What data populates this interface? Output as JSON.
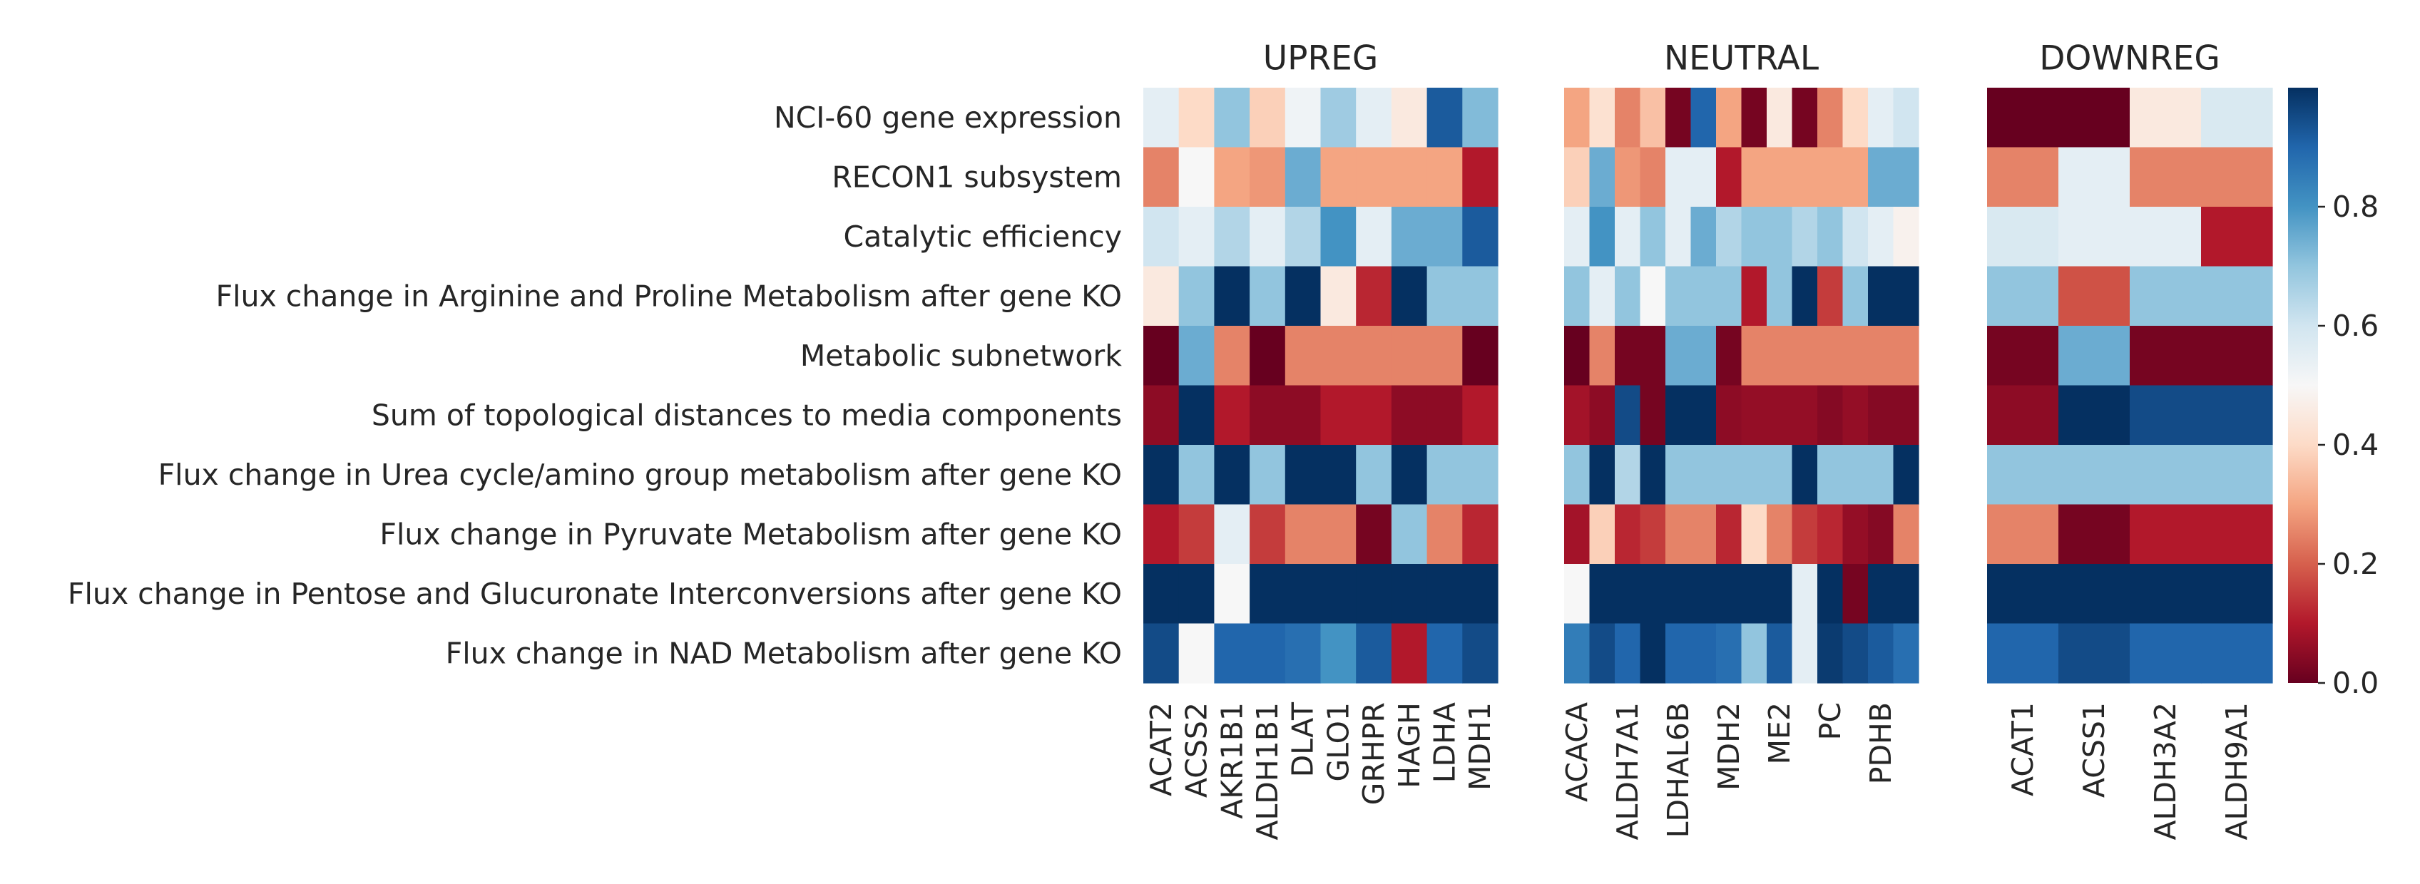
{
  "chart_data": {
    "type": "heatmap",
    "rows": [
      "NCI-60 gene expression",
      "RECON1 subsystem",
      "Catalytic efficiency",
      "Flux change in Arginine and Proline Metabolism after gene KO",
      "Metabolic subnetwork",
      "Sum of topological distances to media components",
      "Flux change in Urea cycle/amino group metabolism after gene KO",
      "Flux change in Pyruvate Metabolism after gene KO",
      "Flux change in Pentose and Glucuronate Interconversions after gene KO",
      "Flux change in NAD Metabolism after gene KO"
    ],
    "panels": [
      {
        "title": "UPREG",
        "columns": [
          "ACAT2",
          "ACSS2",
          "AKR1B1",
          "ALDH1B1",
          "DLAT",
          "GLO1",
          "GRHPR",
          "HAGH",
          "LDHA",
          "MDH1"
        ],
        "values": [
          [
            0.55,
            0.4,
            0.7,
            0.38,
            0.52,
            0.68,
            0.55,
            0.45,
            0.92,
            0.72
          ],
          [
            0.25,
            0.5,
            0.3,
            0.28,
            0.75,
            0.3,
            0.3,
            0.3,
            0.3,
            0.1
          ],
          [
            0.6,
            0.55,
            0.65,
            0.55,
            0.65,
            0.8,
            0.55,
            0.75,
            0.75,
            0.92
          ],
          [
            0.45,
            0.7,
            1.0,
            0.7,
            1.0,
            0.45,
            0.12,
            1.0,
            0.7,
            0.7
          ],
          [
            0.0,
            0.75,
            0.25,
            0.0,
            0.25,
            0.25,
            0.25,
            0.25,
            0.25,
            0.0
          ],
          [
            0.05,
            1.0,
            0.1,
            0.05,
            0.05,
            0.1,
            0.1,
            0.05,
            0.05,
            0.1
          ],
          [
            1.0,
            0.7,
            1.0,
            0.7,
            1.0,
            1.0,
            0.7,
            1.0,
            0.7,
            0.7
          ],
          [
            0.1,
            0.15,
            0.55,
            0.15,
            0.25,
            0.25,
            0.02,
            0.7,
            0.25,
            0.12
          ],
          [
            1.0,
            1.0,
            0.5,
            1.0,
            1.0,
            1.0,
            1.0,
            1.0,
            1.0,
            1.0
          ],
          [
            0.95,
            0.5,
            0.9,
            0.9,
            0.88,
            0.8,
            0.92,
            0.1,
            0.9,
            0.95
          ]
        ]
      },
      {
        "title": "NEUTRAL",
        "columns": [
          "ACACA",
          "ALDH7A1",
          "LDHAL6B",
          "MDH2",
          "ME2",
          "PC",
          "PDHB"
        ],
        "col_count": 14,
        "col_labels_at": [
          0,
          2,
          4,
          6,
          8,
          10,
          12
        ],
        "values": [
          [
            0.3,
            0.42,
            0.25,
            0.35,
            0.02,
            0.9,
            0.3,
            0.02,
            0.45,
            0.02,
            0.25,
            0.4,
            0.55,
            0.6
          ],
          [
            0.38,
            0.75,
            0.28,
            0.25,
            0.55,
            0.55,
            0.1,
            0.3,
            0.3,
            0.3,
            0.3,
            0.3,
            0.75,
            0.75
          ],
          [
            0.55,
            0.8,
            0.55,
            0.7,
            0.55,
            0.75,
            0.65,
            0.7,
            0.7,
            0.65,
            0.7,
            0.6,
            0.55,
            0.48
          ],
          [
            0.7,
            0.55,
            0.7,
            0.5,
            0.7,
            0.7,
            0.7,
            0.1,
            0.7,
            1.0,
            0.15,
            0.7,
            1.0,
            1.0
          ],
          [
            0.0,
            0.25,
            0.02,
            0.02,
            0.75,
            0.75,
            0.02,
            0.25,
            0.25,
            0.25,
            0.25,
            0.25,
            0.25,
            0.25
          ],
          [
            0.08,
            0.05,
            0.95,
            0.02,
            1.0,
            1.0,
            0.05,
            0.06,
            0.06,
            0.06,
            0.04,
            0.06,
            0.04,
            0.04
          ],
          [
            0.7,
            1.0,
            0.65,
            1.0,
            0.7,
            0.7,
            0.7,
            0.7,
            0.7,
            1.0,
            0.7,
            0.7,
            0.7,
            1.0
          ],
          [
            0.08,
            0.38,
            0.12,
            0.15,
            0.25,
            0.25,
            0.12,
            0.4,
            0.25,
            0.15,
            0.12,
            0.06,
            0.04,
            0.25
          ],
          [
            0.5,
            1.0,
            1.0,
            1.0,
            1.0,
            1.0,
            1.0,
            1.0,
            1.0,
            0.55,
            1.0,
            0.02,
            1.0,
            1.0
          ],
          [
            0.85,
            0.95,
            0.9,
            1.0,
            0.9,
            0.9,
            0.88,
            0.7,
            0.92,
            0.55,
            0.98,
            0.95,
            0.92,
            0.88
          ]
        ]
      },
      {
        "title": "DOWNREG",
        "columns": [
          "ACAT1",
          "ACSS1",
          "ALDH3A2",
          "ALDH9A1"
        ],
        "values": [
          [
            0.0,
            0.0,
            0.45,
            0.58
          ],
          [
            0.25,
            0.55,
            0.25,
            0.25
          ],
          [
            0.58,
            0.55,
            0.55,
            0.1
          ],
          [
            0.7,
            0.18,
            0.7,
            0.7
          ],
          [
            0.02,
            0.75,
            0.02,
            0.02
          ],
          [
            0.05,
            1.0,
            0.95,
            0.95
          ],
          [
            0.7,
            0.7,
            0.7,
            0.7
          ],
          [
            0.25,
            0.02,
            0.1,
            0.1
          ],
          [
            1.0,
            1.0,
            1.0,
            1.0
          ],
          [
            0.9,
            0.95,
            0.9,
            0.9
          ]
        ]
      }
    ],
    "colorbar": {
      "range": [
        0.0,
        1.0
      ],
      "ticks": [
        0.0,
        0.2,
        0.4,
        0.6,
        0.8
      ],
      "tick_labels": [
        "0.0",
        "0.2",
        "0.4",
        "0.6",
        "0.8"
      ],
      "colormap": "RdBu",
      "stops": [
        "#67001f",
        "#b2182b",
        "#d6604d",
        "#f4a582",
        "#fddbc7",
        "#f7f7f7",
        "#d1e5f0",
        "#92c5de",
        "#4393c3",
        "#2166ac",
        "#053061"
      ]
    }
  }
}
